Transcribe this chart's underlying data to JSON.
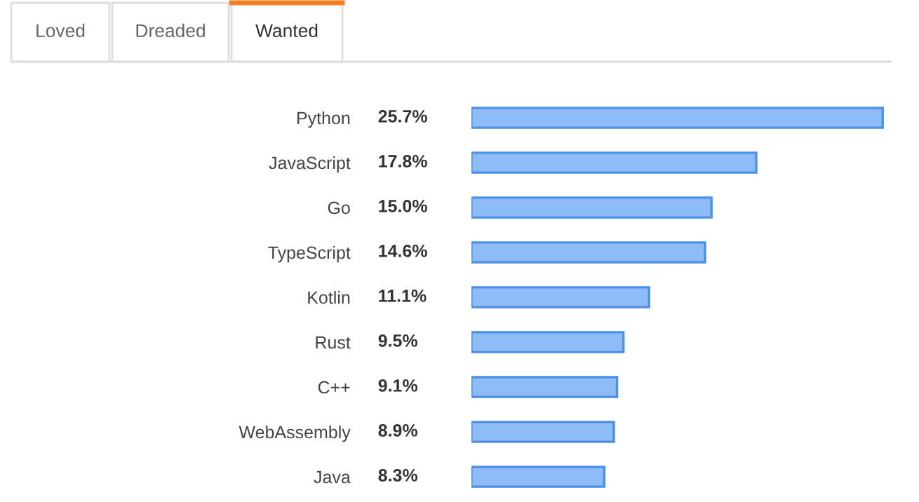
{
  "chart_data": {
    "type": "bar",
    "orientation": "horizontal",
    "color": "#8dbcf7",
    "value_labels": [
      "25.7%",
      "17.8%",
      "15.0%",
      "14.6%",
      "11.1%",
      "9.5%",
      "9.1%",
      "8.9%",
      "8.3%"
    ],
    "categories": [
      "Python",
      "JavaScript",
      "Go",
      "TypeScript",
      "Kotlin",
      "Rust",
      "C++",
      "WebAssembly",
      "Java"
    ],
    "values": [
      25.7,
      17.8,
      15.0,
      14.6,
      11.1,
      9.5,
      9.1,
      8.9,
      8.3
    ],
    "annotations": [
      "Loved",
      "Dreaded",
      "Wanted"
    ]
  }
}
